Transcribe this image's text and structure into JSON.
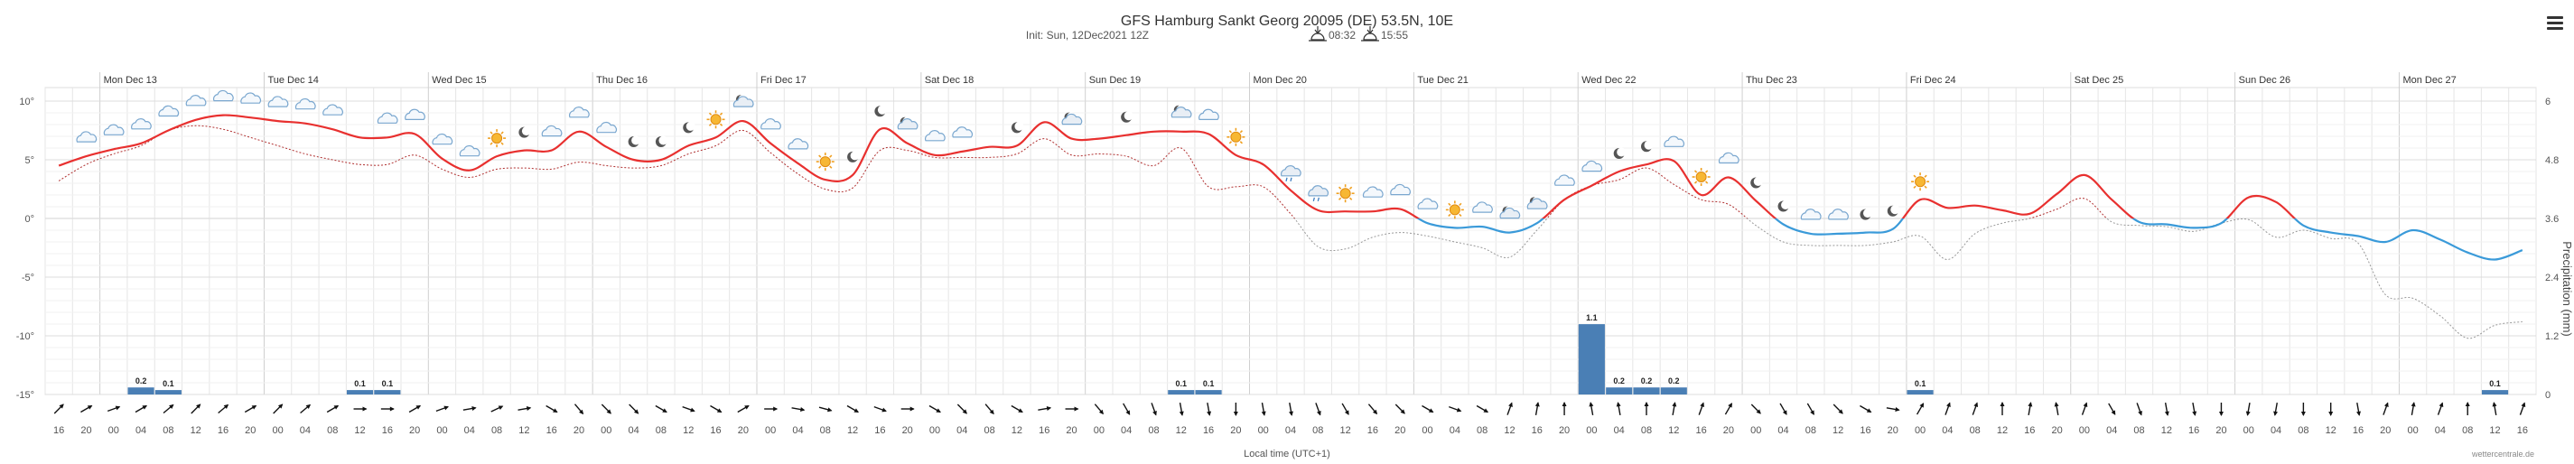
{
  "header": {
    "title": "GFS Hamburg Sankt Georg 20095 (DE) 53.5N, 10E",
    "init": "Init: Sun, 12Dec2021 12Z",
    "sunrise": "08:32",
    "sunset": "15:55"
  },
  "menu": {
    "icon": "hamburger-menu-icon"
  },
  "colors": {
    "temp_pos": "#e8302f",
    "temp_neg": "#3a9ad9",
    "dew": "#b03030",
    "precip": "#4a7fb5",
    "grid": "#e6e6e6"
  },
  "chart_data": {
    "type": "line",
    "title": "GFS Hamburg Sankt Georg 20095 (DE) 53.5N, 10E",
    "xlabel": "Local time (UTC+1)",
    "credit": "wettercentrale.de",
    "temp_axis": {
      "min": -15,
      "max": 10,
      "ticks": [
        "10°",
        "5°",
        "0°",
        "-5°",
        "-10°",
        "-15°"
      ],
      "values": [
        10,
        5,
        0,
        -5,
        -10,
        -15
      ]
    },
    "precip_axis": {
      "title": "Precipitation (mm)",
      "min": 0,
      "max": 6,
      "ticks": [
        "0",
        "1.2",
        "2.4",
        "3.6",
        "4.8",
        "6"
      ],
      "values": [
        0,
        1.2,
        2.4,
        3.6,
        4.8,
        6
      ]
    },
    "days": [
      "Mon Dec 13",
      "Tue Dec 14",
      "Wed Dec 15",
      "Thu Dec 16",
      "Fri Dec 17",
      "Sat Dec 18",
      "Sun Dec 19",
      "Mon Dec 20",
      "Tue Dec 21",
      "Wed Dec 22",
      "Thu Dec 23",
      "Fri Dec 24",
      "Sat Dec 25",
      "Sun Dec 26",
      "Mon Dec 27"
    ],
    "hour_labels": [
      "16",
      "20",
      "00",
      "04",
      "08",
      "12",
      "16",
      "20",
      "00",
      "04",
      "08",
      "12",
      "16",
      "20",
      "00",
      "04",
      "08",
      "12",
      "16",
      "20",
      "00",
      "04",
      "08",
      "12",
      "16",
      "20",
      "00",
      "04",
      "08",
      "12",
      "16",
      "20",
      "00",
      "04",
      "08",
      "12",
      "16",
      "20",
      "00",
      "04",
      "08",
      "12",
      "16",
      "20",
      "00",
      "04",
      "08",
      "12",
      "16",
      "20",
      "00",
      "04",
      "08",
      "12",
      "16",
      "20",
      "00",
      "04",
      "08",
      "12",
      "16",
      "20",
      "00",
      "04",
      "08",
      "12",
      "16",
      "20",
      "00",
      "04",
      "08",
      "12",
      "16",
      "20",
      "00",
      "04",
      "08",
      "12",
      "16",
      "20",
      "00",
      "04",
      "08",
      "12",
      "16",
      "20",
      "00",
      "04",
      "08",
      "12",
      "16"
    ],
    "series": [
      {
        "name": "Temperature",
        "unit": "°C",
        "values": [
          4.5,
          5.3,
          5.9,
          6.4,
          7.5,
          8.4,
          8.8,
          8.6,
          8.3,
          8.1,
          7.6,
          6.9,
          6.9,
          7.2,
          5.1,
          4.1,
          5.3,
          5.8,
          5.8,
          7.4,
          6.1,
          5.0,
          5.0,
          6.2,
          6.9,
          8.3,
          6.4,
          4.7,
          3.3,
          3.7,
          7.6,
          6.4,
          5.4,
          5.7,
          6.1,
          6.2,
          8.2,
          6.8,
          6.8,
          7.1,
          7.4,
          7.4,
          7.2,
          5.4,
          4.6,
          2.4,
          0.7,
          0.6,
          0.6,
          0.8,
          -0.4,
          -0.8,
          -0.7,
          -1.2,
          -0.4,
          1.6,
          2.8,
          4.0,
          4.6,
          4.9,
          2.0,
          3.5,
          1.5,
          -0.5,
          -1.3,
          -1.3,
          -1.2,
          -0.9,
          1.6,
          0.9,
          1.1,
          0.7,
          0.4,
          2.1,
          3.7,
          1.6,
          -0.3,
          -0.5,
          -0.8,
          -0.4,
          1.8,
          1.4,
          -0.6,
          -1.2,
          -1.5,
          -2.0,
          -1.0,
          -1.8,
          -2.9,
          -3.5,
          -2.7
        ]
      },
      {
        "name": "Dew point",
        "unit": "°C",
        "values": [
          3.2,
          4.6,
          5.5,
          6.2,
          7.5,
          7.9,
          7.6,
          6.9,
          6.2,
          5.5,
          5.0,
          4.6,
          4.6,
          5.4,
          4.2,
          3.5,
          4.2,
          4.3,
          4.2,
          4.8,
          4.5,
          4.3,
          4.5,
          5.5,
          6.2,
          7.5,
          5.6,
          3.8,
          2.5,
          2.6,
          5.8,
          5.8,
          5.2,
          5.2,
          5.2,
          5.5,
          6.8,
          5.4,
          5.5,
          5.3,
          4.5,
          6.0,
          2.7,
          2.7,
          2.7,
          0.4,
          -2.4,
          -2.6,
          -1.6,
          -1.2,
          -1.5,
          -2.0,
          -2.5,
          -3.3,
          -1.0,
          1.6,
          2.8,
          3.3,
          4.3,
          2.9,
          1.6,
          1.2,
          -0.6,
          -2.0,
          -2.3,
          -2.3,
          -2.3,
          -2.0,
          -1.5,
          -3.5,
          -1.3,
          -0.4,
          0.0,
          0.8,
          1.7,
          -0.3,
          -0.6,
          -0.7,
          -1.1,
          -0.4,
          -0.1,
          -1.6,
          -1.0,
          -1.7,
          -2.1,
          -6.5,
          -6.8,
          -8.3,
          -10.2,
          -9.1,
          -8.8
        ]
      }
    ],
    "precip": {
      "name": "Precipitation",
      "unit": "mm",
      "bars": [
        {
          "index": 3,
          "value": 0.2,
          "label": "0.2"
        },
        {
          "index": 4,
          "value": 0.1,
          "label": "0.1"
        },
        {
          "index": 11,
          "value": 0.1,
          "label": "0.1"
        },
        {
          "index": 12,
          "value": 0.1,
          "label": "0.1"
        },
        {
          "index": 41,
          "value": 0.1,
          "label": "0.1"
        },
        {
          "index": 42,
          "value": 0.1,
          "label": "0.1"
        },
        {
          "index": 56,
          "value": 1.1,
          "label": "1.1"
        },
        {
          "index": 57,
          "value": 0.2,
          "label": "0.2"
        },
        {
          "index": 58,
          "value": 0.2,
          "label": "0.2"
        },
        {
          "index": 59,
          "value": 0.2,
          "label": "0.2"
        },
        {
          "index": 68,
          "value": 0.1,
          "label": "0.1"
        },
        {
          "index": 89,
          "value": 0.1,
          "label": "0.1"
        }
      ]
    },
    "wind_dir_deg": [
      225,
      240,
      250,
      240,
      230,
      225,
      230,
      240,
      225,
      230,
      240,
      270,
      270,
      240,
      250,
      260,
      245,
      260,
      300,
      320,
      315,
      315,
      300,
      290,
      300,
      240,
      270,
      280,
      285,
      300,
      290,
      270,
      300,
      315,
      320,
      300,
      260,
      270,
      320,
      330,
      340,
      350,
      350,
      0,
      350,
      350,
      340,
      330,
      320,
      315,
      300,
      290,
      300,
      200,
      190,
      180,
      170,
      170,
      180,
      190,
      200,
      210,
      315,
      330,
      330,
      315,
      300,
      280,
      210,
      200,
      200,
      180,
      190,
      170,
      200,
      330,
      340,
      350,
      350,
      0,
      10,
      10,
      0,
      0,
      350,
      200,
      190,
      200,
      180,
      170,
      200
    ],
    "symbols": [
      {
        "i": 1,
        "t": "cloud"
      },
      {
        "i": 2,
        "t": "cloud"
      },
      {
        "i": 3,
        "t": "cloud"
      },
      {
        "i": 4,
        "t": "cloud"
      },
      {
        "i": 5,
        "t": "cloud"
      },
      {
        "i": 6,
        "t": "cloud"
      },
      {
        "i": 7,
        "t": "cloud"
      },
      {
        "i": 8,
        "t": "cloud"
      },
      {
        "i": 9,
        "t": "cloud"
      },
      {
        "i": 10,
        "t": "cloud"
      },
      {
        "i": 12,
        "t": "cloud"
      },
      {
        "i": 13,
        "t": "cloud"
      },
      {
        "i": 14,
        "t": "cloud"
      },
      {
        "i": 15,
        "t": "cloud"
      },
      {
        "i": 16,
        "t": "sun"
      },
      {
        "i": 17,
        "t": "moon"
      },
      {
        "i": 18,
        "t": "cloud"
      },
      {
        "i": 19,
        "t": "cloud"
      },
      {
        "i": 20,
        "t": "cloud"
      },
      {
        "i": 21,
        "t": "moon"
      },
      {
        "i": 22,
        "t": "moon"
      },
      {
        "i": 23,
        "t": "moon"
      },
      {
        "i": 24,
        "t": "sun"
      },
      {
        "i": 25,
        "t": "moon-cloud"
      },
      {
        "i": 26,
        "t": "cloud"
      },
      {
        "i": 27,
        "t": "cloud"
      },
      {
        "i": 28,
        "t": "sun"
      },
      {
        "i": 29,
        "t": "moon"
      },
      {
        "i": 30,
        "t": "moon"
      },
      {
        "i": 31,
        "t": "moon-cloud"
      },
      {
        "i": 32,
        "t": "cloud"
      },
      {
        "i": 33,
        "t": "cloud"
      },
      {
        "i": 35,
        "t": "moon"
      },
      {
        "i": 37,
        "t": "moon-cloud"
      },
      {
        "i": 39,
        "t": "moon"
      },
      {
        "i": 41,
        "t": "moon-cloud"
      },
      {
        "i": 42,
        "t": "cloud"
      },
      {
        "i": 43,
        "t": "sun"
      },
      {
        "i": 45,
        "t": "cloud-rain"
      },
      {
        "i": 46,
        "t": "cloud-rain"
      },
      {
        "i": 47,
        "t": "sun"
      },
      {
        "i": 48,
        "t": "cloud"
      },
      {
        "i": 49,
        "t": "cloud"
      },
      {
        "i": 50,
        "t": "cloud"
      },
      {
        "i": 51,
        "t": "sun"
      },
      {
        "i": 52,
        "t": "cloud"
      },
      {
        "i": 53,
        "t": "moon-cloud"
      },
      {
        "i": 54,
        "t": "moon-cloud"
      },
      {
        "i": 55,
        "t": "cloud"
      },
      {
        "i": 56,
        "t": "cloud"
      },
      {
        "i": 57,
        "t": "moon"
      },
      {
        "i": 58,
        "t": "moon"
      },
      {
        "i": 59,
        "t": "cloud"
      },
      {
        "i": 60,
        "t": "sun"
      },
      {
        "i": 61,
        "t": "cloud"
      },
      {
        "i": 62,
        "t": "moon"
      },
      {
        "i": 63,
        "t": "moon"
      },
      {
        "i": 64,
        "t": "cloud"
      },
      {
        "i": 65,
        "t": "cloud"
      },
      {
        "i": 66,
        "t": "moon"
      },
      {
        "i": 67,
        "t": "moon"
      },
      {
        "i": 68,
        "t": "sun"
      }
    ]
  },
  "footer": {
    "credit": "wettercentrale.de"
  }
}
